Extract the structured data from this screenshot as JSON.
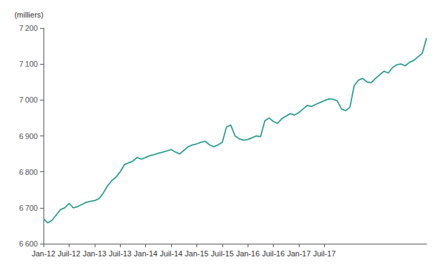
{
  "chart_data": {
    "type": "line",
    "ylabel": "(milliers)",
    "color": "#2a9d8f",
    "grid": false,
    "ylim": [
      6600,
      7200
    ],
    "yticks": [
      {
        "value": 6600,
        "label": "6 600"
      },
      {
        "value": 6700,
        "label": "6 700"
      },
      {
        "value": 6800,
        "label": "6 800"
      },
      {
        "value": 6900,
        "label": "6 900"
      },
      {
        "value": 7000,
        "label": "7 000"
      },
      {
        "value": 7100,
        "label": "7 100"
      },
      {
        "value": 7200,
        "label": "7 200"
      }
    ],
    "categories": [
      "Jan-12",
      null,
      null,
      null,
      null,
      null,
      "Juil-12",
      null,
      null,
      null,
      null,
      null,
      "Jan-13",
      null,
      null,
      null,
      null,
      null,
      "Juil-13",
      null,
      null,
      null,
      null,
      null,
      "Jan-14",
      null,
      null,
      null,
      null,
      null,
      "Juil-14",
      null,
      null,
      null,
      null,
      null,
      "Jan-15",
      null,
      null,
      null,
      null,
      null,
      "Juil-15",
      null,
      null,
      null,
      null,
      null,
      "Jan-16",
      null,
      null,
      null,
      null,
      null,
      "Juil-16",
      null,
      null,
      null,
      null,
      null,
      "Jan-17",
      null,
      null,
      null,
      null,
      null,
      "Juil-17",
      null,
      null,
      null,
      null,
      null,
      null,
      null,
      null,
      null,
      null,
      null,
      null,
      null,
      null,
      null,
      null,
      null,
      null,
      null,
      null,
      null,
      null,
      null,
      null
    ],
    "values": [
      6669.8,
      6658,
      6665,
      6680,
      6695,
      6700,
      6712,
      6700,
      6703,
      6709,
      6715,
      6718,
      6720,
      6725,
      6740,
      6760,
      6775,
      6785,
      6800,
      6820,
      6825,
      6830,
      6840,
      6835,
      6840,
      6845,
      6848,
      6852,
      6855,
      6858,
      6862,
      6855,
      6850,
      6860,
      6870,
      6875,
      6878,
      6882,
      6885,
      6875,
      6870,
      6875,
      6882,
      6925,
      6930,
      6900,
      6892,
      6888,
      6890,
      6895,
      6900,
      6898,
      6942,
      6950,
      6940,
      6935,
      6948,
      6955,
      6962,
      6958,
      6965,
      6975,
      6985,
      6982,
      6988,
      6993,
      6998,
      7003,
      7002,
      6998,
      6975,
      6970,
      6980,
      7040,
      7055,
      7060,
      7050,
      7048,
      7060,
      7070,
      7080,
      7075,
      7090,
      7098,
      7100,
      7095,
      7105,
      7110,
      7120,
      7130,
      7172
    ]
  }
}
